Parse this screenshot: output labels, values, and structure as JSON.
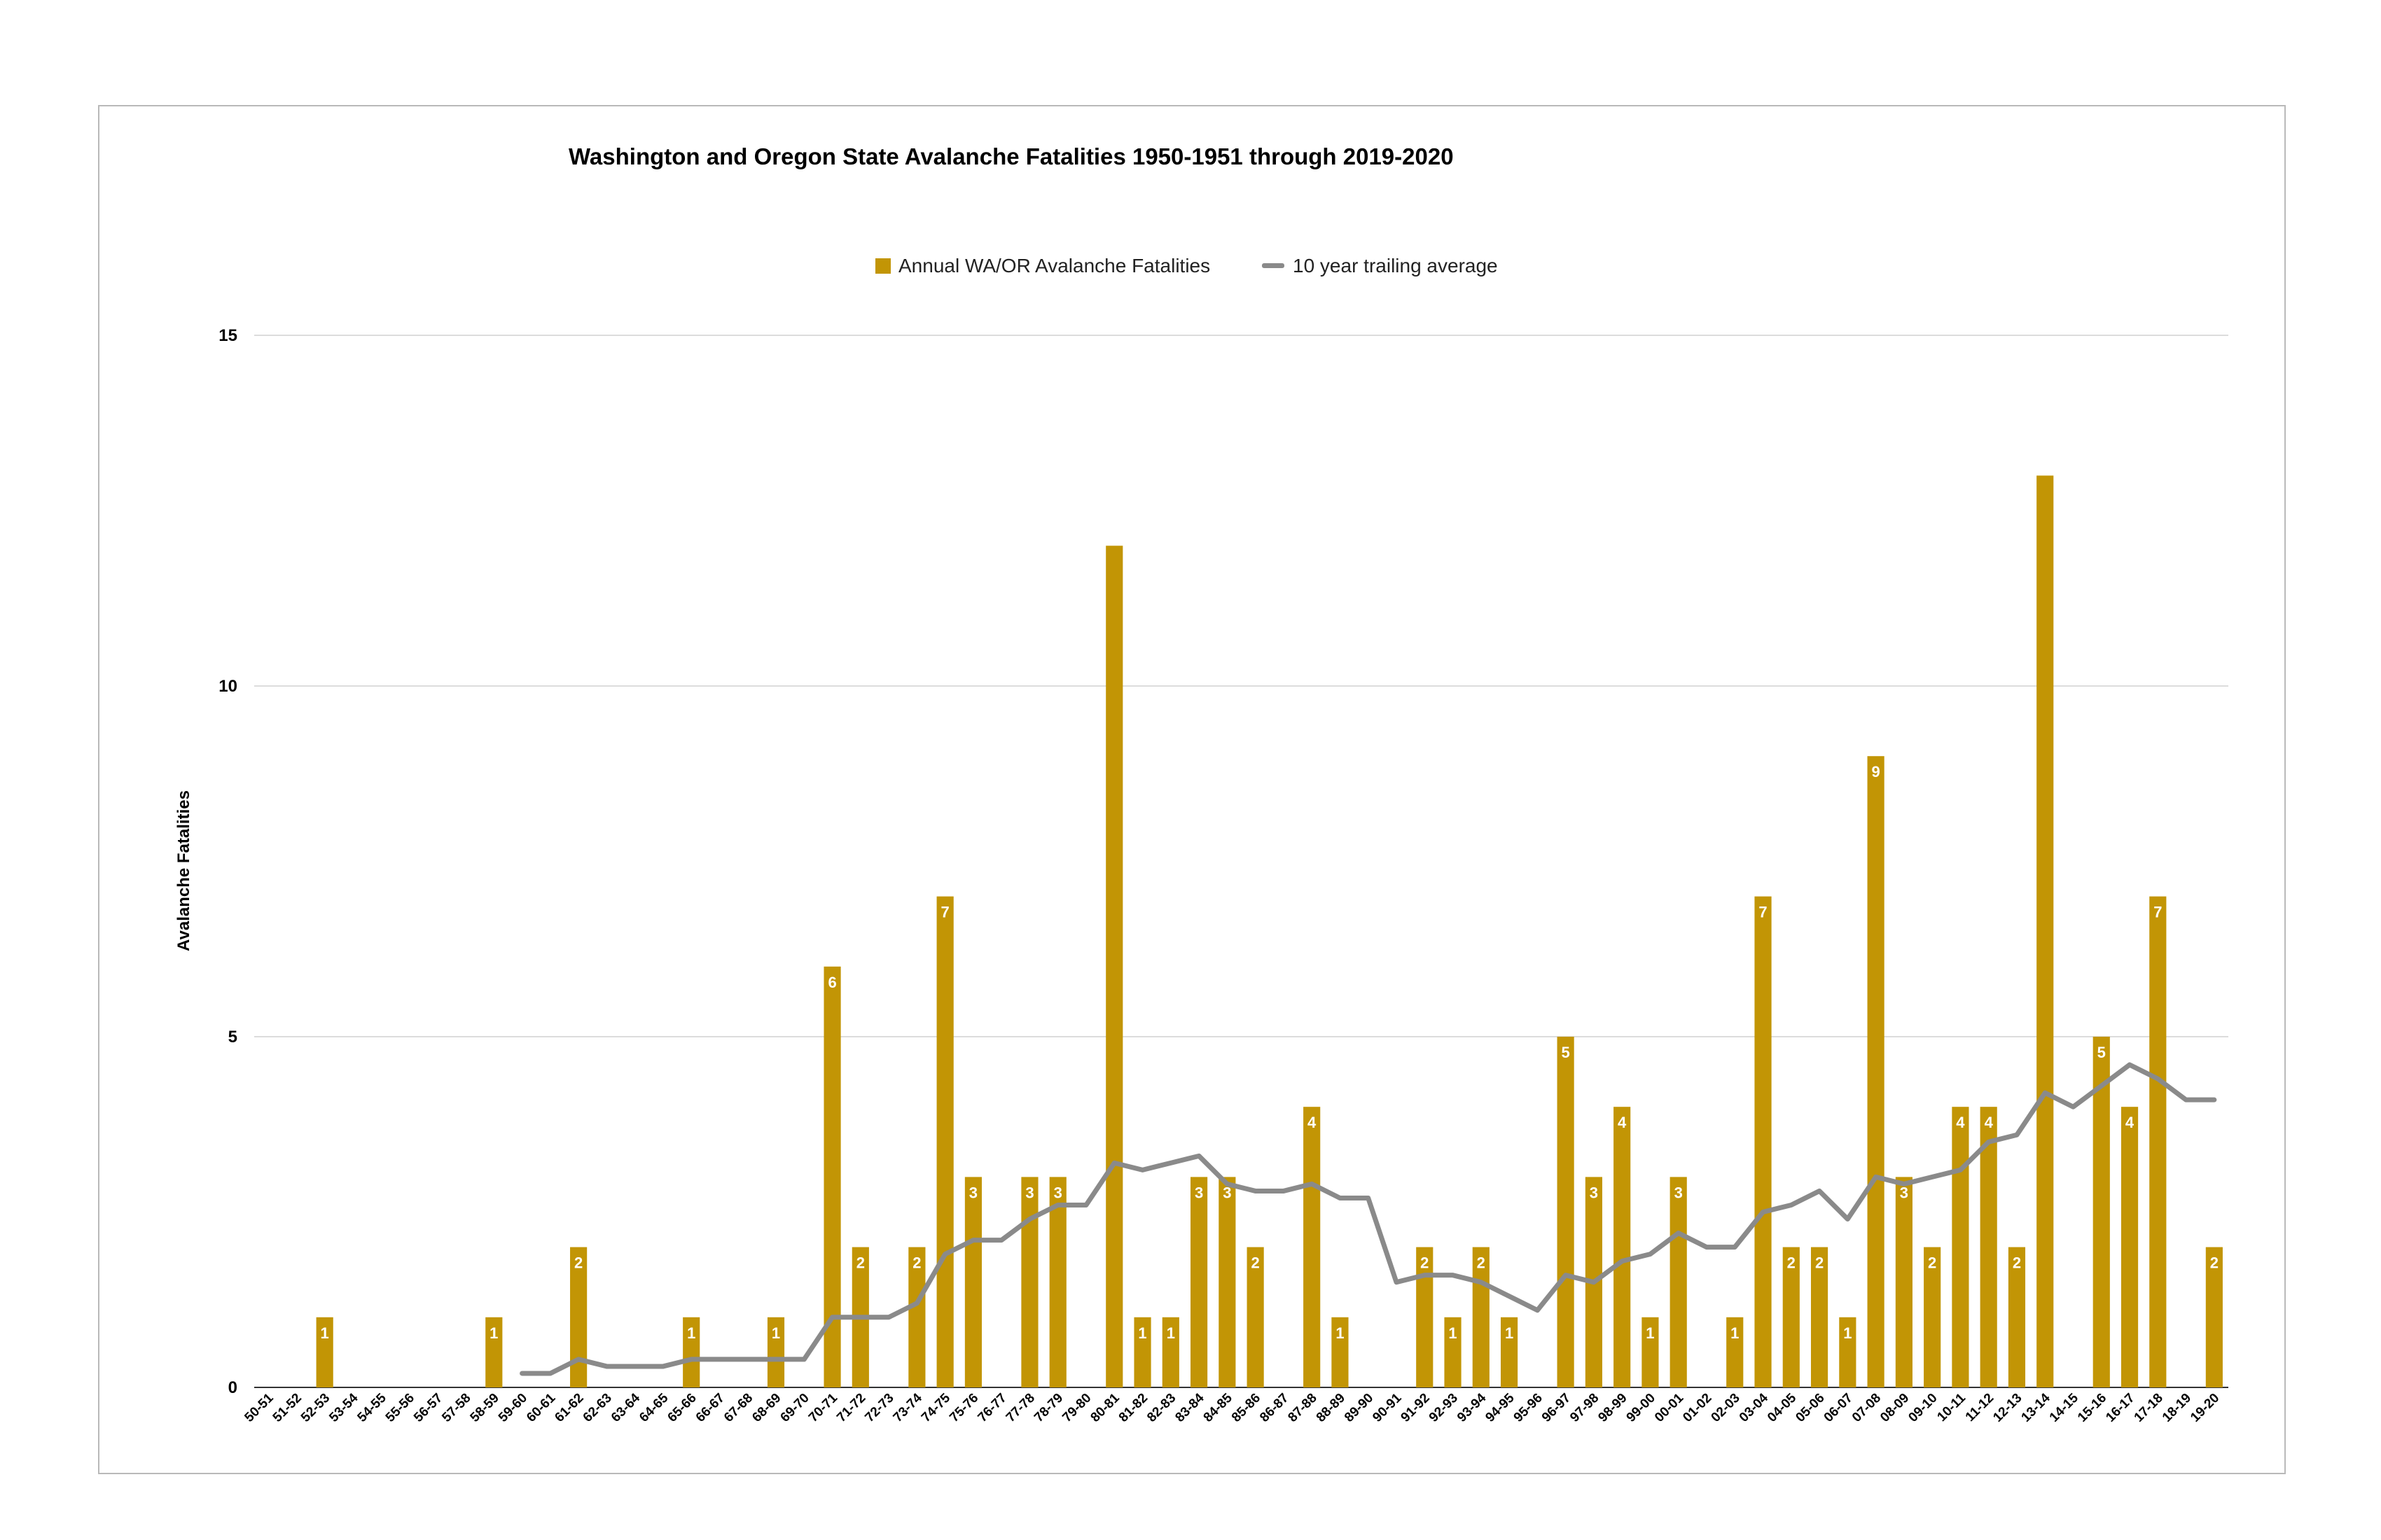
{
  "chart_data": {
    "type": "bar",
    "title": "Washington and Oregon State Avalanche Fatalities 1950-1951 through 2019-2020",
    "ylabel": "Avalanche Fatalities",
    "xlabel": "",
    "ylim": [
      0,
      15
    ],
    "yticks": [
      0,
      5,
      10,
      15
    ],
    "grid": true,
    "legend_position": "top",
    "colors": {
      "bars": "#C29505",
      "line": "#8A8A8A",
      "grid": "#D0D0D0"
    },
    "categories": [
      "50-51",
      "51-52",
      "52-53",
      "53-54",
      "54-55",
      "55-56",
      "56-57",
      "57-58",
      "58-59",
      "59-60",
      "60-61",
      "61-62",
      "62-63",
      "63-64",
      "64-65",
      "65-66",
      "66-67",
      "67-68",
      "68-69",
      "69-70",
      "70-71",
      "71-72",
      "72-73",
      "73-74",
      "74-75",
      "75-76",
      "76-77",
      "77-78",
      "78-79",
      "79-80",
      "80-81",
      "81-82",
      "82-83",
      "83-84",
      "84-85",
      "85-86",
      "86-87",
      "87-88",
      "88-89",
      "89-90",
      "90-91",
      "91-92",
      "92-93",
      "93-94",
      "94-95",
      "95-96",
      "96-97",
      "97-98",
      "98-99",
      "99-00",
      "00-01",
      "01-02",
      "02-03",
      "03-04",
      "04-05",
      "05-06",
      "06-07",
      "07-08",
      "08-09",
      "09-10",
      "10-11",
      "11-12",
      "12-13",
      "13-14",
      "14-15",
      "15-16",
      "16-17",
      "17-18",
      "18-19",
      "19-20"
    ],
    "series": [
      {
        "name": "Annual WA/OR Avalanche Fatalities",
        "type": "bar",
        "values": [
          0,
          0,
          1,
          0,
          0,
          0,
          0,
          0,
          1,
          0,
          0,
          2,
          0,
          0,
          0,
          1,
          0,
          0,
          1,
          0,
          6,
          2,
          0,
          2,
          7,
          3,
          0,
          3,
          3,
          0,
          12,
          1,
          1,
          3,
          3,
          2,
          0,
          4,
          1,
          0,
          0,
          2,
          1,
          2,
          1,
          0,
          5,
          3,
          4,
          1,
          3,
          0,
          1,
          7,
          2,
          2,
          1,
          9,
          3,
          2,
          4,
          4,
          2,
          13,
          0,
          5,
          4,
          7,
          0,
          2
        ],
        "data_labels": [
          "",
          "",
          "1",
          "",
          "",
          "",
          "",
          "",
          "1",
          "",
          "",
          "2",
          "",
          "",
          "",
          "1",
          "",
          "",
          "1",
          "",
          "6",
          "2",
          "",
          "2",
          "7",
          "3",
          "",
          "3",
          "3",
          "",
          "",
          "1",
          "1",
          "3",
          "3",
          "2",
          "",
          "4",
          "1",
          "",
          "",
          "2",
          "1",
          "2",
          "1",
          "",
          "5",
          "3",
          "4",
          "1",
          "3",
          "",
          "1",
          "7",
          "2",
          "2",
          "1",
          "9",
          "3",
          "2",
          "4",
          "4",
          "2",
          "",
          "",
          "5",
          "4",
          "7",
          "",
          "2"
        ]
      },
      {
        "name": "10 year trailing average",
        "type": "line",
        "values": [
          null,
          null,
          null,
          null,
          null,
          null,
          null,
          null,
          null,
          0.2,
          0.2,
          0.4,
          0.3,
          0.3,
          0.3,
          0.4,
          0.4,
          0.4,
          0.4,
          0.4,
          1.0,
          1.0,
          1.0,
          1.2,
          1.9,
          2.1,
          2.1,
          2.4,
          2.6,
          2.6,
          3.2,
          3.1,
          3.2,
          3.3,
          2.9,
          2.8,
          2.8,
          2.9,
          2.7,
          2.7,
          1.5,
          1.6,
          1.6,
          1.5,
          1.3,
          1.1,
          1.6,
          1.5,
          1.8,
          1.9,
          2.2,
          2.0,
          2.0,
          2.5,
          2.6,
          2.8,
          2.4,
          3.0,
          2.9,
          3.0,
          3.1,
          3.5,
          3.6,
          4.2,
          4.0,
          4.3,
          4.6,
          4.4,
          4.1,
          4.1
        ]
      }
    ]
  }
}
